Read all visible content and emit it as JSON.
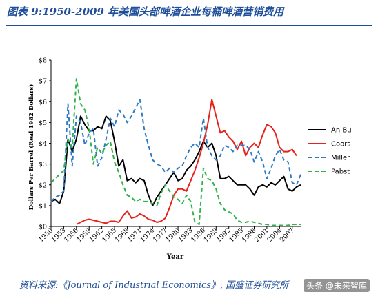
{
  "figure": {
    "title": "图表 9:1950-2009 年美国头部啤酒企业每桶啤酒营销费用",
    "source": "资料来源:《Journal of Industrial Economics》, 国盛证券研究所",
    "watermark": "头条 @未来智库"
  },
  "chart_data": {
    "type": "line",
    "xlabel": "Year",
    "ylabel": "Dollars Per Barrel (Real 1982 Dollars)",
    "xlim": [
      1950,
      2009
    ],
    "ylim": [
      0,
      8
    ],
    "x_ticks": [
      "1950",
      "1953",
      "1956",
      "1959",
      "1962",
      "1965",
      "1968",
      "1971",
      "1974",
      "1977",
      "1980",
      "1983",
      "1986",
      "1989",
      "1992",
      "1995",
      "1998",
      "2001",
      "2004",
      "2007"
    ],
    "y_ticks": [
      "$0",
      "$1",
      "$2",
      "$3",
      "$4",
      "$5",
      "$6",
      "$7",
      "$8"
    ],
    "grid": false,
    "legend_position": "right",
    "series": [
      {
        "name": "An-Bu",
        "color": "#000000",
        "dash": "solid",
        "x": [
          1950,
          1951,
          1952,
          1953,
          1954,
          1955,
          1956,
          1957,
          1958,
          1959,
          1960,
          1961,
          1962,
          1963,
          1964,
          1965,
          1966,
          1967,
          1968,
          1969,
          1970,
          1971,
          1972,
          1973,
          1974,
          1975,
          1976,
          1977,
          1978,
          1979,
          1980,
          1981,
          1982,
          1983,
          1984,
          1985,
          1986,
          1987,
          1988,
          1989,
          1990,
          1991,
          1992,
          1993,
          1994,
          1995,
          1996,
          1997,
          1998,
          1999,
          2000,
          2001,
          2002,
          2003,
          2004,
          2005,
          2006,
          2007,
          2008,
          2009
        ],
        "values": [
          1.2,
          1.3,
          1.1,
          1.7,
          4.2,
          3.6,
          4.2,
          5.3,
          4.9,
          4.6,
          4.6,
          4.8,
          4.7,
          5.3,
          5.1,
          4.1,
          2.9,
          3.2,
          2.2,
          2.3,
          2.1,
          2.3,
          2.2,
          1.5,
          1.0,
          1.4,
          1.7,
          2.0,
          2.3,
          2.6,
          2.2,
          2.3,
          2.7,
          2.9,
          3.2,
          3.6,
          4.1,
          3.8,
          4.0,
          3.4,
          2.3,
          2.3,
          2.4,
          2.2,
          2.0,
          2.0,
          2.0,
          1.8,
          1.5,
          1.9,
          2.0,
          1.9,
          2.1,
          2.0,
          2.2,
          2.4,
          1.8,
          1.7,
          1.9,
          2.0
        ]
      },
      {
        "name": "Coors",
        "color": "#e8221a",
        "dash": "solid",
        "x": [
          1956,
          1957,
          1958,
          1959,
          1960,
          1961,
          1962,
          1963,
          1964,
          1965,
          1966,
          1967,
          1968,
          1969,
          1970,
          1971,
          1972,
          1973,
          1974,
          1975,
          1976,
          1977,
          1978,
          1979,
          1980,
          1981,
          1982,
          1983,
          1984,
          1985,
          1986,
          1987,
          1988,
          1989,
          1990,
          1991,
          1992,
          1993,
          1994,
          1995,
          1996,
          1997,
          1998,
          1999,
          2000,
          2001,
          2002,
          2003,
          2004,
          2005,
          2006,
          2007,
          2008
        ],
        "values": [
          0.1,
          0.2,
          0.3,
          0.35,
          0.3,
          0.25,
          0.2,
          0.15,
          0.25,
          0.25,
          0.2,
          0.5,
          0.75,
          0.4,
          0.45,
          0.6,
          0.5,
          0.35,
          0.3,
          0.2,
          0.25,
          0.4,
          0.9,
          1.5,
          1.8,
          1.8,
          1.7,
          2.2,
          2.7,
          3.3,
          4.0,
          4.9,
          6.1,
          5.3,
          4.5,
          4.6,
          4.3,
          4.1,
          3.7,
          4.1,
          3.4,
          3.8,
          4.0,
          3.8,
          4.4,
          4.9,
          4.8,
          4.5,
          3.8,
          3.6,
          3.6,
          3.7,
          3.4
        ]
      },
      {
        "name": "Miller",
        "color": "#2e7bc4",
        "dash": "dash",
        "x": [
          1950,
          1951,
          1952,
          1953,
          1954,
          1955,
          1956,
          1957,
          1958,
          1959,
          1960,
          1961,
          1962,
          1963,
          1964,
          1965,
          1966,
          1967,
          1968,
          1969,
          1970,
          1971,
          1972,
          1973,
          1974,
          1975,
          1976,
          1977,
          1978,
          1979,
          1980,
          1981,
          1982,
          1983,
          1984,
          1985,
          1986,
          1987,
          1988,
          1989,
          1990,
          1991,
          1992,
          1993,
          1994,
          1995,
          1996,
          1997,
          1998,
          1999,
          2000,
          2001,
          2002,
          2003,
          2004,
          2005,
          2006,
          2007,
          2008,
          2009
        ],
        "values": [
          1.2,
          1.4,
          1.5,
          1.7,
          5.9,
          2.9,
          5.3,
          5.0,
          3.9,
          4.5,
          4.7,
          2.9,
          3.3,
          4.2,
          5.2,
          4.8,
          5.6,
          5.4,
          5.0,
          5.3,
          5.7,
          6.1,
          4.7,
          3.9,
          3.2,
          3.0,
          2.9,
          2.6,
          2.8,
          2.6,
          2.8,
          2.9,
          3.4,
          3.8,
          4.0,
          3.8,
          5.2,
          3.8,
          3.4,
          3.2,
          3.4,
          3.9,
          3.8,
          3.6,
          3.9,
          3.9,
          3.9,
          3.7,
          3.1,
          3.6,
          3.1,
          2.3,
          2.8,
          3.4,
          3.7,
          3.2,
          3.1,
          2.1,
          2.0,
          2.5
        ]
      },
      {
        "name": "Pabst",
        "color": "#2fb34a",
        "dash": "dash",
        "x": [
          1950,
          1951,
          1952,
          1953,
          1954,
          1955,
          1956,
          1957,
          1958,
          1959,
          1960,
          1961,
          1962,
          1963,
          1964,
          1965,
          1966,
          1967,
          1968,
          1969,
          1970,
          1971,
          1972,
          1973,
          1974,
          1975,
          1976,
          1977,
          1978,
          1979,
          1980,
          1981,
          1982,
          1983,
          1984,
          1985,
          1986,
          1987,
          1988,
          1989,
          1990,
          1991,
          1992,
          1993,
          1994,
          1995,
          1996,
          1997,
          1998,
          1999,
          2000,
          2001,
          2002,
          2003,
          2004,
          2005,
          2006,
          2007,
          2008,
          2009
        ],
        "values": [
          2.1,
          2.3,
          2.5,
          2.7,
          4.2,
          3.8,
          7.1,
          5.9,
          5.6,
          4.7,
          3.0,
          3.8,
          3.5,
          3.9,
          4.1,
          3.1,
          2.6,
          2.0,
          1.5,
          1.4,
          1.2,
          1.3,
          1.2,
          1.2,
          1.1,
          1.0,
          1.6,
          2.0,
          1.7,
          1.4,
          1.3,
          1.1,
          1.5,
          1.2,
          0.2,
          0.1,
          2.8,
          2.3,
          2.2,
          1.8,
          1.1,
          0.8,
          0.7,
          0.6,
          0.3,
          0.2,
          0.2,
          0.25,
          0.2,
          0.15,
          0.1,
          0.1,
          0.05,
          0.05,
          0.05,
          0.05,
          0.05,
          0.1,
          0.1,
          0.1
        ]
      }
    ]
  }
}
